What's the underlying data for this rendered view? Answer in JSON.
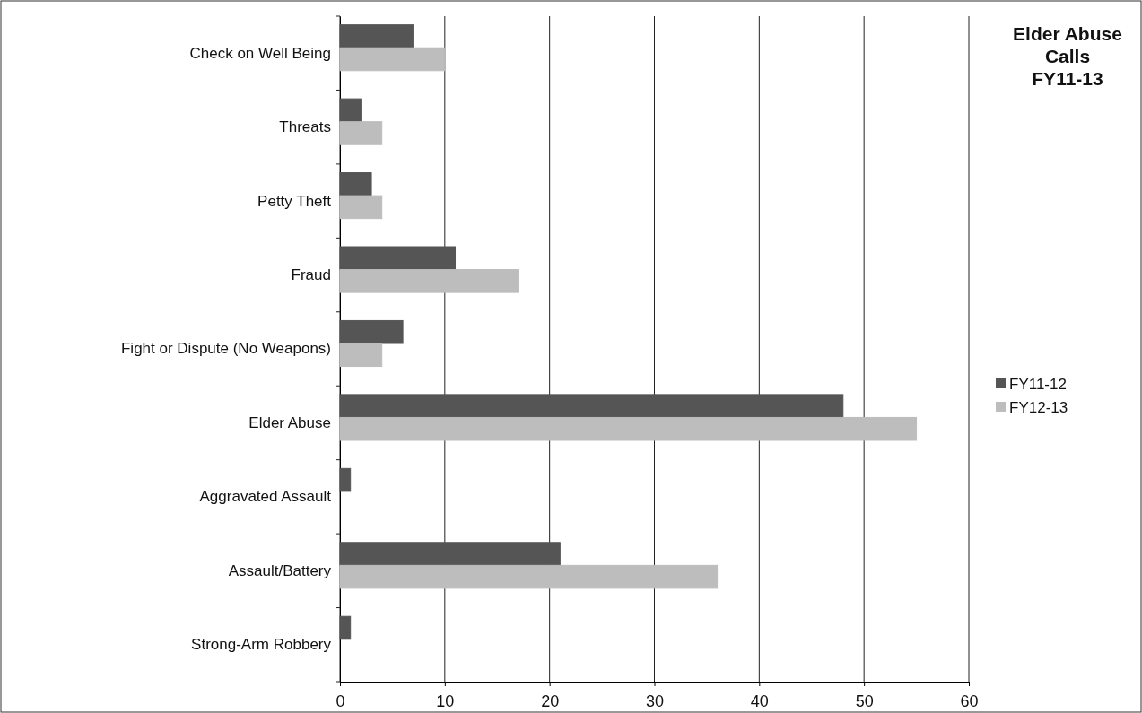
{
  "chart_data": {
    "type": "bar",
    "orientation": "horizontal",
    "title": "Elder Abuse Calls FY11-13",
    "categories": [
      "Check on Well Being",
      "Threats",
      "Petty Theft",
      "Fraud",
      "Fight or Dispute (No Weapons)",
      "Elder Abuse",
      "Aggravated Assault",
      "Assault/Battery",
      "Strong-Arm Robbery"
    ],
    "series": [
      {
        "name": "FY11-12",
        "color": "#555555",
        "values": [
          7,
          2,
          3,
          11,
          6,
          48,
          1,
          21,
          1
        ]
      },
      {
        "name": "FY12-13",
        "color": "#bdbdbd",
        "values": [
          10,
          4,
          4,
          17,
          4,
          55,
          0,
          36,
          0
        ]
      }
    ],
    "xlim": [
      0,
      60
    ],
    "xticks": [
      0,
      10,
      20,
      30,
      40,
      50,
      60
    ],
    "grid": "x",
    "legend": "right"
  }
}
